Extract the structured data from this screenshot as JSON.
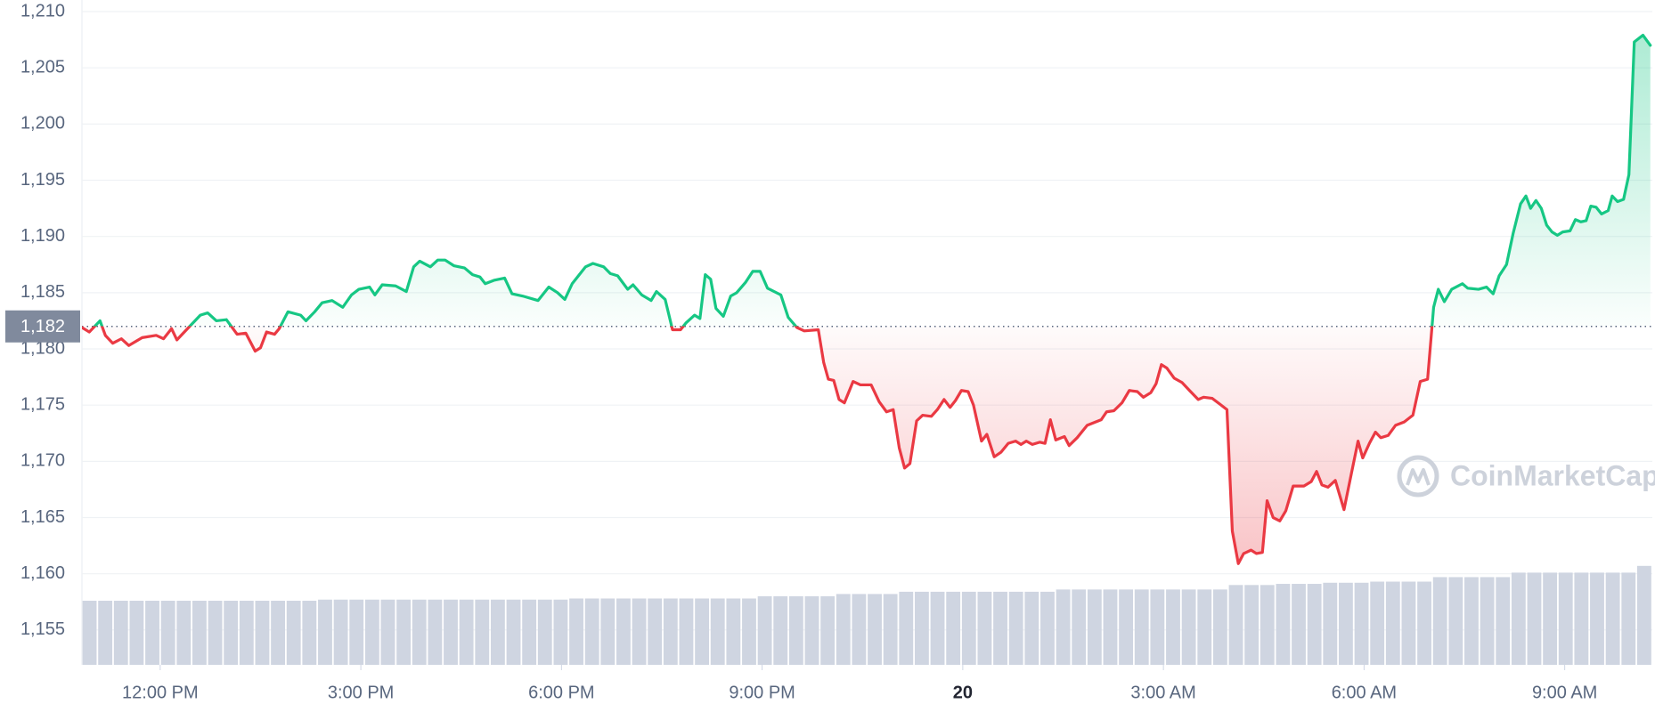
{
  "chart_data": {
    "type": "line",
    "xlim": [
      10.83,
      34.31
    ],
    "xticks": [
      {
        "value": 12,
        "label": "12:00 PM"
      },
      {
        "value": 15,
        "label": "3:00 PM"
      },
      {
        "value": 18,
        "label": "6:00 PM"
      },
      {
        "value": 21,
        "label": "9:00 PM"
      },
      {
        "value": 24,
        "label": "20"
      },
      {
        "value": 27,
        "label": "3:00 AM"
      },
      {
        "value": 30,
        "label": "6:00 AM"
      },
      {
        "value": 33,
        "label": "9:00 AM"
      }
    ],
    "ylim": [
      1151.9,
      1211.03
    ],
    "yticks": [
      {
        "value": 1155,
        "label": "1,155"
      },
      {
        "value": 1160,
        "label": "1,160"
      },
      {
        "value": 1165,
        "label": "1,165"
      },
      {
        "value": 1170,
        "label": "1,170"
      },
      {
        "value": 1175,
        "label": "1,175"
      },
      {
        "value": 1180,
        "label": "1,180"
      },
      {
        "value": 1185,
        "label": "1,185"
      },
      {
        "value": 1190,
        "label": "1,190"
      },
      {
        "value": 1195,
        "label": "1,195"
      },
      {
        "value": 1200,
        "label": "1,200"
      },
      {
        "value": 1205,
        "label": "1,205"
      },
      {
        "value": 1210,
        "label": "1,210"
      }
    ],
    "grid": true,
    "reference": {
      "value": 1182,
      "label": "1,182"
    },
    "up_color": "#16c784",
    "down_color": "#ea3943",
    "watermark": "CoinMarketCap",
    "x": [
      10.83,
      10.94,
      11.1,
      11.18,
      11.29,
      11.42,
      11.53,
      11.73,
      11.94,
      12.05,
      12.17,
      12.25,
      12.44,
      12.6,
      12.71,
      12.84,
      12.99,
      13.15,
      13.28,
      13.42,
      13.5,
      13.59,
      13.71,
      13.78,
      13.91,
      14.1,
      14.18,
      14.31,
      14.42,
      14.57,
      14.73,
      14.86,
      14.97,
      15.13,
      15.21,
      15.32,
      15.52,
      15.68,
      15.79,
      15.88,
      16.04,
      16.15,
      16.26,
      16.39,
      16.55,
      16.67,
      16.78,
      16.86,
      16.99,
      17.15,
      17.26,
      17.42,
      17.65,
      17.81,
      17.94,
      18.05,
      18.16,
      18.36,
      18.47,
      18.63,
      18.73,
      18.84,
      18.99,
      19.07,
      19.2,
      19.34,
      19.42,
      19.55,
      19.66,
      19.78,
      19.86,
      19.99,
      20.07,
      20.15,
      20.23,
      20.31,
      20.42,
      20.53,
      20.62,
      20.75,
      20.86,
      20.97,
      21.08,
      21.28,
      21.39,
      21.52,
      21.63,
      21.84,
      21.92,
      21.99,
      22.07,
      22.15,
      22.23,
      22.36,
      22.47,
      22.63,
      22.75,
      22.86,
      22.96,
      23.05,
      23.13,
      23.21,
      23.31,
      23.4,
      23.53,
      23.62,
      23.72,
      23.81,
      23.89,
      23.98,
      24.08,
      24.16,
      24.28,
      24.36,
      24.47,
      24.57,
      24.68,
      24.79,
      24.87,
      24.95,
      25.04,
      25.15,
      25.23,
      25.31,
      25.39,
      25.52,
      25.59,
      25.71,
      25.86,
      26.07,
      26.15,
      26.26,
      26.38,
      26.49,
      26.61,
      26.7,
      26.81,
      26.89,
      26.97,
      27.05,
      27.16,
      27.28,
      27.39,
      27.52,
      27.6,
      27.73,
      27.84,
      27.95,
      28.03,
      28.12,
      28.2,
      28.31,
      28.39,
      28.48,
      28.55,
      28.64,
      28.74,
      28.83,
      28.94,
      29.1,
      29.21,
      29.29,
      29.37,
      29.46,
      29.57,
      29.7,
      29.81,
      29.91,
      29.98,
      30.08,
      30.17,
      30.25,
      30.36,
      30.47,
      30.6,
      30.73,
      30.84,
      30.95,
      31.04,
      31.11,
      31.2,
      31.31,
      31.47,
      31.55,
      31.71,
      31.83,
      31.93,
      32.02,
      32.13,
      32.23,
      32.34,
      32.42,
      32.49,
      32.57,
      32.65,
      32.73,
      32.81,
      32.89,
      32.97,
      33.08,
      33.16,
      33.24,
      33.32,
      33.39,
      33.47,
      33.55,
      33.65,
      33.71,
      33.79,
      33.88,
      33.96,
      34.04,
      34.17,
      34.28
    ],
    "values": [
      1181.9,
      1181.5,
      1182.5,
      1181.2,
      1180.5,
      1180.9,
      1180.3,
      1181.0,
      1181.2,
      1180.9,
      1181.8,
      1180.8,
      1182.0,
      1183.0,
      1183.2,
      1182.5,
      1182.6,
      1181.3,
      1181.4,
      1179.8,
      1180.1,
      1181.5,
      1181.3,
      1181.8,
      1183.3,
      1183.0,
      1182.5,
      1183.3,
      1184.1,
      1184.3,
      1183.7,
      1184.8,
      1185.3,
      1185.5,
      1184.8,
      1185.7,
      1185.6,
      1185.1,
      1187.3,
      1187.8,
      1187.3,
      1187.9,
      1187.9,
      1187.4,
      1187.2,
      1186.6,
      1186.4,
      1185.8,
      1186.1,
      1186.3,
      1184.9,
      1184.7,
      1184.3,
      1185.5,
      1185.0,
      1184.4,
      1185.8,
      1187.3,
      1187.6,
      1187.3,
      1186.7,
      1186.5,
      1185.3,
      1185.7,
      1184.8,
      1184.3,
      1185.1,
      1184.4,
      1181.7,
      1181.7,
      1182.3,
      1183.0,
      1182.7,
      1186.6,
      1186.2,
      1183.6,
      1182.9,
      1184.7,
      1185.0,
      1185.9,
      1186.9,
      1186.9,
      1185.4,
      1184.8,
      1182.8,
      1181.9,
      1181.6,
      1181.7,
      1178.8,
      1177.3,
      1177.2,
      1175.5,
      1175.2,
      1177.1,
      1176.8,
      1176.8,
      1175.3,
      1174.4,
      1174.6,
      1171.2,
      1169.4,
      1169.8,
      1173.6,
      1174.1,
      1174.0,
      1174.6,
      1175.5,
      1174.8,
      1175.4,
      1176.3,
      1176.2,
      1175.0,
      1171.8,
      1172.4,
      1170.4,
      1170.8,
      1171.6,
      1171.8,
      1171.5,
      1171.8,
      1171.5,
      1171.7,
      1171.6,
      1173.7,
      1171.9,
      1172.2,
      1171.4,
      1172.1,
      1173.2,
      1173.7,
      1174.4,
      1174.5,
      1175.2,
      1176.3,
      1176.2,
      1175.7,
      1176.1,
      1176.9,
      1178.6,
      1178.3,
      1177.4,
      1177.0,
      1176.3,
      1175.5,
      1175.7,
      1175.6,
      1175.1,
      1174.6,
      1163.8,
      1160.9,
      1161.8,
      1162.1,
      1161.8,
      1161.9,
      1166.5,
      1165.0,
      1164.7,
      1165.6,
      1167.8,
      1167.8,
      1168.2,
      1169.1,
      1167.9,
      1167.7,
      1168.3,
      1165.7,
      1168.9,
      1171.8,
      1170.3,
      1171.6,
      1172.6,
      1172.1,
      1172.3,
      1173.2,
      1173.5,
      1174.1,
      1177.1,
      1177.3,
      1183.7,
      1185.3,
      1184.2,
      1185.3,
      1185.8,
      1185.4,
      1185.3,
      1185.5,
      1184.9,
      1186.5,
      1187.5,
      1190.3,
      1192.9,
      1193.6,
      1192.5,
      1193.2,
      1192.5,
      1191.0,
      1190.4,
      1190.1,
      1190.4,
      1190.5,
      1191.5,
      1191.3,
      1191.4,
      1192.7,
      1192.6,
      1192.0,
      1192.3,
      1193.6,
      1193.1,
      1193.3,
      1195.5,
      1207.3,
      1207.9,
      1207.0
    ],
    "volume": {
      "color": "#cfd5e1",
      "values": [
        1157.6,
        1157.6,
        1157.6,
        1157.6,
        1157.6,
        1157.6,
        1157.6,
        1157.6,
        1157.6,
        1157.6,
        1157.6,
        1157.6,
        1157.6,
        1157.6,
        1157.6,
        1157.7,
        1157.7,
        1157.7,
        1157.7,
        1157.7,
        1157.7,
        1157.7,
        1157.7,
        1157.7,
        1157.7,
        1157.7,
        1157.7,
        1157.7,
        1157.7,
        1157.7,
        1157.7,
        1157.8,
        1157.8,
        1157.8,
        1157.8,
        1157.8,
        1157.8,
        1157.8,
        1157.8,
        1157.8,
        1157.8,
        1157.8,
        1157.8,
        1158.0,
        1158.0,
        1158.0,
        1158.0,
        1158.0,
        1158.2,
        1158.2,
        1158.2,
        1158.2,
        1158.4,
        1158.4,
        1158.4,
        1158.4,
        1158.4,
        1158.4,
        1158.4,
        1158.4,
        1158.4,
        1158.4,
        1158.6,
        1158.6,
        1158.6,
        1158.6,
        1158.6,
        1158.6,
        1158.6,
        1158.6,
        1158.6,
        1158.6,
        1158.6,
        1159.0,
        1159.0,
        1159.0,
        1159.1,
        1159.1,
        1159.1,
        1159.2,
        1159.2,
        1159.2,
        1159.3,
        1159.3,
        1159.3,
        1159.3,
        1159.7,
        1159.7,
        1159.7,
        1159.7,
        1159.7,
        1160.1,
        1160.1,
        1160.1,
        1160.1,
        1160.1,
        1160.1,
        1160.1,
        1160.1,
        1160.7
      ]
    }
  }
}
